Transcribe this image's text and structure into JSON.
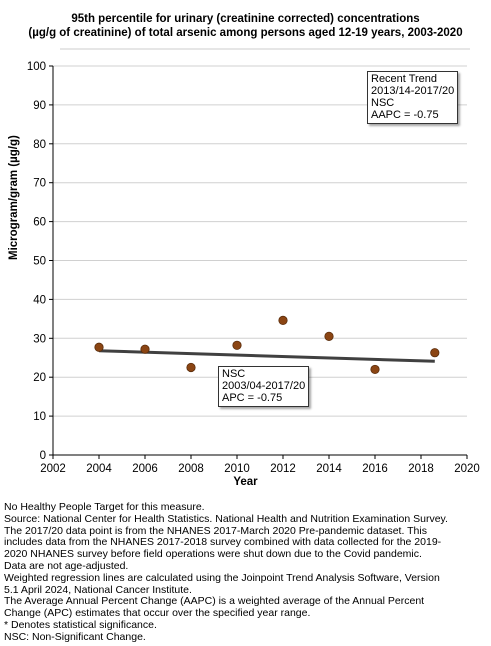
{
  "title_lines": [
    "95th percentile for urinary (creatinine corrected) concentrations",
    "(µg/g of creatinine) of total arsenic among persons aged 12-19 years, 2003-2020"
  ],
  "chart_data": {
    "type": "scatter",
    "title": "95th percentile for urinary (creatinine corrected) concentrations (µg/g of creatinine) of total arsenic among persons aged 12-19 years, 2003-2020",
    "xlabel": "Year",
    "ylabel": "Microgram/gram (µg/g)",
    "xlim": [
      2002,
      2020
    ],
    "ylim": [
      0,
      100
    ],
    "xticks": [
      2002,
      2004,
      2006,
      2008,
      2010,
      2012,
      2014,
      2016,
      2018,
      2020
    ],
    "yticks": [
      0,
      10,
      20,
      30,
      40,
      50,
      60,
      70,
      80,
      90,
      100
    ],
    "points": [
      {
        "x": 2004,
        "y": 27.7
      },
      {
        "x": 2006,
        "y": 27.2
      },
      {
        "x": 2008,
        "y": 22.5
      },
      {
        "x": 2010,
        "y": 28.2
      },
      {
        "x": 2012,
        "y": 34.6
      },
      {
        "x": 2014,
        "y": 30.5
      },
      {
        "x": 2016,
        "y": 22.0
      },
      {
        "x": 2018.6,
        "y": 26.3
      }
    ],
    "trend_line": [
      {
        "x": 2004,
        "y": 26.8
      },
      {
        "x": 2018.6,
        "y": 24.1
      }
    ],
    "grid": "horizontal",
    "point_color": "#8B4513",
    "line_color": "#404040"
  },
  "annotations": {
    "recent_trend": [
      "Recent Trend",
      "2013/14-2017/20",
      "NSC",
      "AAPC = -0.75"
    ],
    "overall_trend": [
      "NSC",
      "2003/04-2017/20",
      "APC = -0.75"
    ]
  },
  "footnotes": [
    "No Healthy People Target for this measure.",
    "Source: National Center for Health Statistics. National Health and Nutrition Examination Survey.",
    "The 2017/20 data point is from the NHANES 2017-March 2020 Pre-pandemic dataset. This",
    "includes data from the NHANES 2017-2018 survey combined with data collected for the 2019-",
    "2020 NHANES survey before field operations were shut down due to the Covid pandemic.",
    "Data are not age-adjusted.",
    "Weighted regression lines are calculated using the Joinpoint Trend Analysis Software, Version",
    "5.1 April 2024, National Cancer Institute.",
    "The Average Annual Percent Change (AAPC) is a weighted average of the Annual Percent",
    "Change (APC) estimates that occur over the specified year range.",
    "* Denotes statistical significance.",
    "NSC: Non-Significant Change."
  ]
}
